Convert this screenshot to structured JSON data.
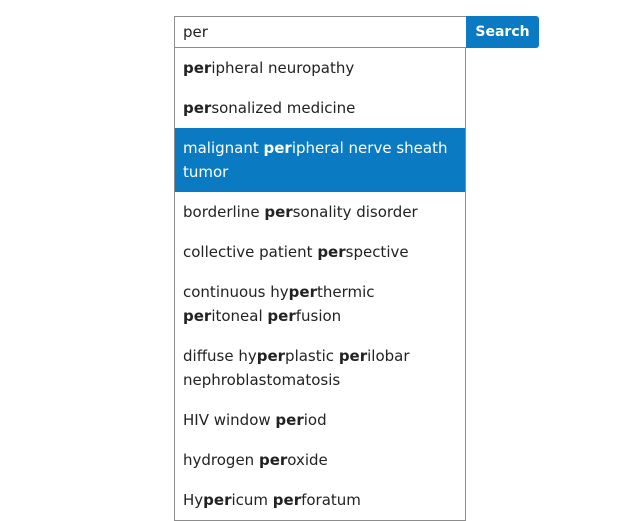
{
  "search": {
    "query": "per",
    "button_label": "Search"
  },
  "suggestions": [
    {
      "parts": [
        {
          "t": "per",
          "b": true
        },
        {
          "t": "ipheral neuropathy"
        }
      ]
    },
    {
      "parts": [
        {
          "t": "per",
          "b": true
        },
        {
          "t": "sonalized medicine"
        }
      ]
    },
    {
      "active": true,
      "parts": [
        {
          "t": "malignant "
        },
        {
          "t": "per",
          "b": true
        },
        {
          "t": "ipheral nerve sheath tumor"
        }
      ]
    },
    {
      "parts": [
        {
          "t": "borderline "
        },
        {
          "t": "per",
          "b": true
        },
        {
          "t": "sonality disorder"
        }
      ]
    },
    {
      "parts": [
        {
          "t": "collective patient "
        },
        {
          "t": "per",
          "b": true
        },
        {
          "t": "spective"
        }
      ]
    },
    {
      "parts": [
        {
          "t": "continuous hy"
        },
        {
          "t": "per",
          "b": true
        },
        {
          "t": "thermic "
        },
        {
          "t": "per",
          "b": true
        },
        {
          "t": "itoneal "
        },
        {
          "t": "per",
          "b": true
        },
        {
          "t": "fusion"
        }
      ]
    },
    {
      "parts": [
        {
          "t": "diffuse hy"
        },
        {
          "t": "per",
          "b": true
        },
        {
          "t": "plastic "
        },
        {
          "t": "per",
          "b": true
        },
        {
          "t": "ilobar nephroblastomatosis"
        }
      ]
    },
    {
      "parts": [
        {
          "t": "HIV window "
        },
        {
          "t": "per",
          "b": true
        },
        {
          "t": "iod"
        }
      ]
    },
    {
      "parts": [
        {
          "t": "hydrogen "
        },
        {
          "t": "per",
          "b": true
        },
        {
          "t": "oxide"
        }
      ]
    },
    {
      "parts": [
        {
          "t": "Hy"
        },
        {
          "t": "per",
          "b": true
        },
        {
          "t": "icum "
        },
        {
          "t": "per",
          "b": true
        },
        {
          "t": "foratum"
        }
      ]
    }
  ]
}
